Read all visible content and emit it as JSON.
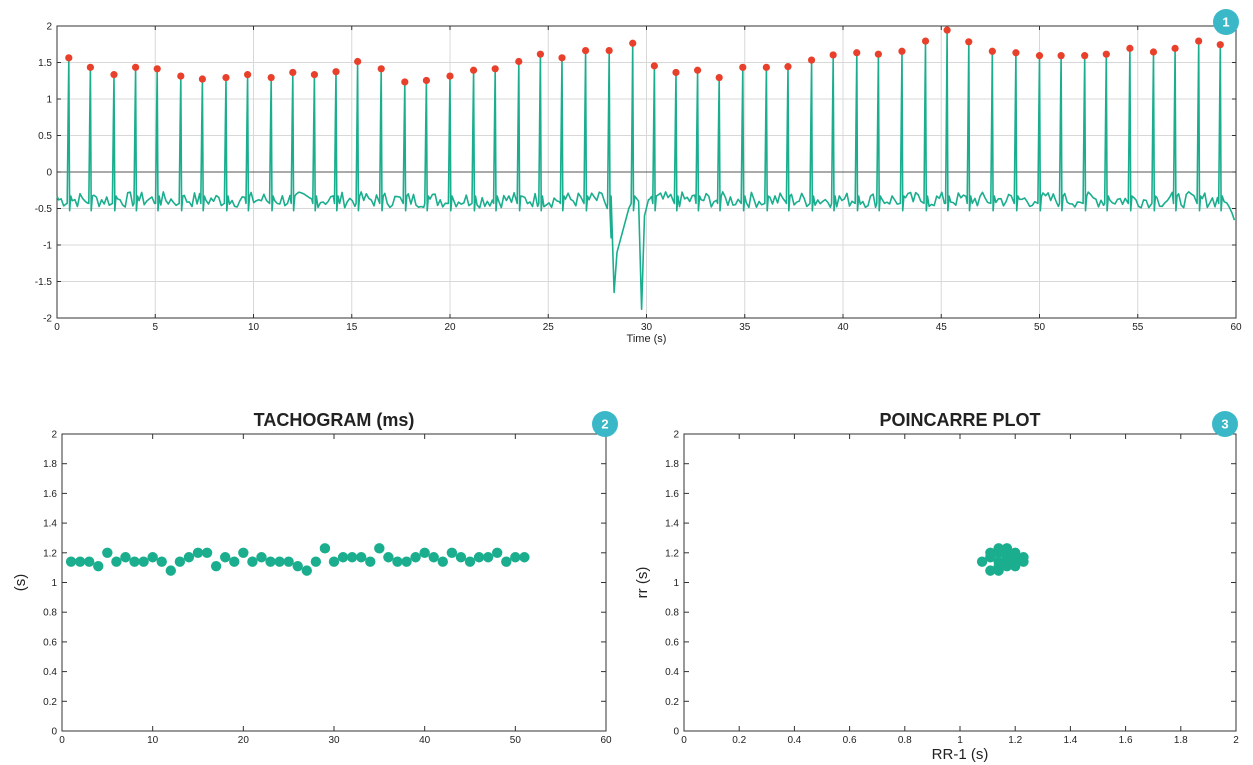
{
  "colors": {
    "signal": "#1aae8e",
    "peak": "#e8402a",
    "badge": "#3bb8c8",
    "grid": "#d8d8d8",
    "axis": "#333333"
  },
  "badges": [
    "1",
    "2",
    "3"
  ],
  "chart_data": [
    {
      "type": "line",
      "title": "",
      "xlabel": "Time (s)",
      "ylabel": "",
      "xlim": [
        0,
        60
      ],
      "ylim": [
        -2,
        2
      ],
      "xticks": [
        "0",
        "5",
        "10",
        "15",
        "20",
        "25",
        "30",
        "35",
        "40",
        "45",
        "50",
        "55",
        "60"
      ],
      "yticks": [
        "-2",
        "-1.5",
        "-1",
        "-0.5",
        "0",
        "0.5",
        "1",
        "1.5",
        "2"
      ],
      "grid": true,
      "series": [
        {
          "role": "ecg-signal",
          "baseline": -0.38,
          "peaks_t": [
            0.6,
            1.7,
            2.9,
            4.0,
            5.1,
            6.3,
            7.4,
            8.6,
            9.7,
            10.9,
            12.0,
            13.1,
            14.2,
            15.3,
            16.5,
            17.7,
            18.8,
            20.0,
            21.2,
            22.3,
            23.5,
            24.6,
            25.7,
            26.9,
            28.1,
            29.3,
            30.4,
            31.5,
            32.6,
            33.7,
            34.9,
            36.1,
            37.2,
            38.4,
            39.5,
            40.7,
            41.8,
            43.0,
            44.2,
            45.3,
            46.4,
            47.6,
            48.8,
            50.0,
            51.1,
            52.3,
            53.4,
            54.6,
            55.8,
            56.9,
            58.1,
            59.2
          ],
          "peaks_v": [
            1.55,
            1.42,
            1.32,
            1.42,
            1.4,
            1.3,
            1.26,
            1.28,
            1.32,
            1.28,
            1.35,
            1.32,
            1.36,
            1.5,
            1.4,
            1.22,
            1.24,
            1.3,
            1.38,
            1.4,
            1.5,
            1.6,
            1.55,
            1.65,
            1.65,
            1.75,
            1.44,
            1.35,
            1.38,
            1.28,
            1.42,
            1.42,
            1.43,
            1.52,
            1.59,
            1.62,
            1.6,
            1.64,
            1.78,
            1.93,
            1.77,
            1.64,
            1.62,
            1.58,
            1.58,
            1.58,
            1.6,
            1.68,
            1.63,
            1.68,
            1.78,
            1.73
          ],
          "artifact": [
            [
              28.0,
              -0.5
            ],
            [
              28.2,
              -0.9
            ],
            [
              28.35,
              -1.65
            ],
            [
              28.5,
              -1.1
            ],
            [
              28.8,
              -0.8
            ],
            [
              29.1,
              -0.5
            ],
            [
              29.6,
              -0.4
            ],
            [
              29.75,
              -1.88
            ],
            [
              29.9,
              -0.6
            ],
            [
              30.1,
              -0.38
            ]
          ]
        }
      ]
    },
    {
      "type": "scatter",
      "title": "TACHOGRAM (ms)",
      "xlabel": "",
      "ylabel": "(s)",
      "xlim": [
        0,
        60
      ],
      "ylim": [
        0,
        2
      ],
      "xticks": [
        "0",
        "10",
        "20",
        "30",
        "40",
        "50",
        "60"
      ],
      "yticks": [
        "0",
        "0.2",
        "0.4",
        "0.6",
        "0.8",
        "1",
        "1.2",
        "1.4",
        "1.6",
        "1.8",
        "2"
      ],
      "grid": false,
      "x": [
        1,
        2,
        3,
        4,
        5,
        6,
        7,
        8,
        9,
        10,
        11,
        12,
        13,
        14,
        15,
        16,
        17,
        18,
        19,
        20,
        21,
        22,
        23,
        24,
        25,
        26,
        27,
        28,
        29,
        30,
        31,
        32,
        33,
        34,
        35,
        36,
        37,
        38,
        39,
        40,
        41,
        42,
        43,
        44,
        45,
        46,
        47,
        48,
        49,
        50,
        51
      ],
      "y": [
        1.14,
        1.14,
        1.14,
        1.11,
        1.2,
        1.14,
        1.17,
        1.14,
        1.14,
        1.17,
        1.14,
        1.08,
        1.14,
        1.17,
        1.2,
        1.2,
        1.11,
        1.17,
        1.14,
        1.2,
        1.14,
        1.17,
        1.14,
        1.14,
        1.14,
        1.11,
        1.08,
        1.14,
        1.23,
        1.14,
        1.17,
        1.17,
        1.17,
        1.14,
        1.23,
        1.17,
        1.14,
        1.14,
        1.17,
        1.2,
        1.17,
        1.14,
        1.2,
        1.17,
        1.14,
        1.17,
        1.17,
        1.2,
        1.14,
        1.17,
        1.17
      ]
    },
    {
      "type": "scatter",
      "title": "POINCARRE PLOT",
      "xlabel": "RR-1 (s)",
      "ylabel": "rr (s)",
      "xlim": [
        0,
        2
      ],
      "ylim": [
        0,
        2
      ],
      "xticks": [
        "0",
        "0.2",
        "0.4",
        "0.6",
        "0.8",
        "1",
        "1.2",
        "1.4",
        "1.6",
        "1.8",
        "2"
      ],
      "yticks": [
        "0",
        "0.2",
        "0.4",
        "0.6",
        "0.8",
        "1",
        "1.2",
        "1.4",
        "1.6",
        "1.8",
        "2"
      ],
      "grid": false,
      "x": [
        1.08,
        1.11,
        1.11,
        1.14,
        1.14,
        1.14,
        1.14,
        1.17,
        1.17,
        1.17,
        1.17,
        1.2,
        1.2,
        1.2,
        1.23,
        1.23,
        1.11,
        1.14,
        1.17,
        1.2
      ],
      "y": [
        1.14,
        1.08,
        1.17,
        1.08,
        1.11,
        1.14,
        1.2,
        1.14,
        1.17,
        1.2,
        1.23,
        1.11,
        1.14,
        1.17,
        1.14,
        1.17,
        1.2,
        1.23,
        1.11,
        1.2
      ]
    }
  ]
}
